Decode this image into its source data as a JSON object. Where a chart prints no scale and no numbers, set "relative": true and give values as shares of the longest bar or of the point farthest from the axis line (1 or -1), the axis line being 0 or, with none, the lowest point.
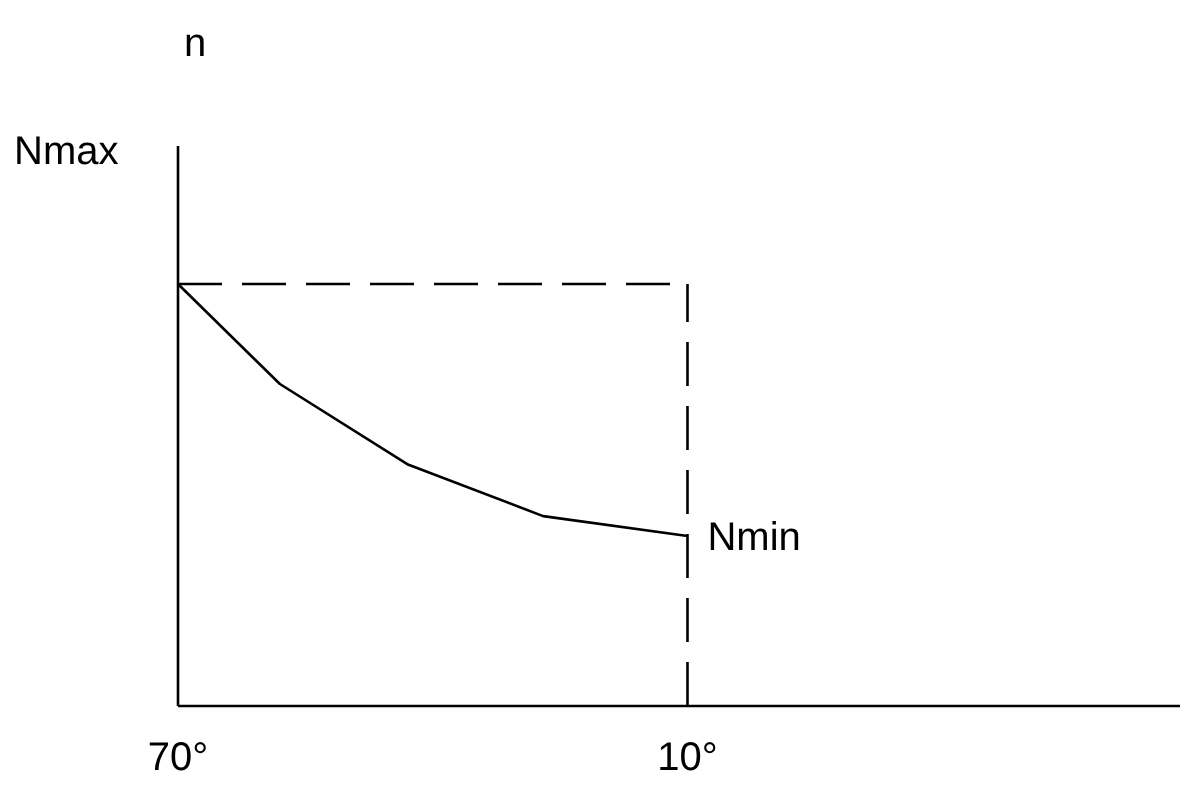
{
  "chart_data": {
    "type": "line",
    "relative": true,
    "x": [
      70,
      58,
      43,
      27,
      10
    ],
    "xlim": [
      70,
      -48
    ],
    "xticks": [
      {
        "value": 70,
        "label": "70°"
      },
      {
        "value": 10,
        "label": "10°"
      }
    ],
    "series": [
      {
        "color": "#000000",
        "values": [
          1,
          0.763,
          0.573,
          0.45,
          0.403
        ],
        "line_style": "solid"
      }
    ],
    "ref_lines": [
      {
        "axis": "y",
        "value": 1,
        "color": "#000000",
        "line_style": "dashed"
      },
      {
        "axis": "x",
        "value": 10,
        "color": "#000000",
        "line_style": "dashed"
      }
    ],
    "annotations": [
      "n",
      "Nmax",
      {
        "text": "Nmin",
        "x": 10,
        "y": 0.403
      }
    ],
    "grid": false,
    "marker": "none"
  }
}
